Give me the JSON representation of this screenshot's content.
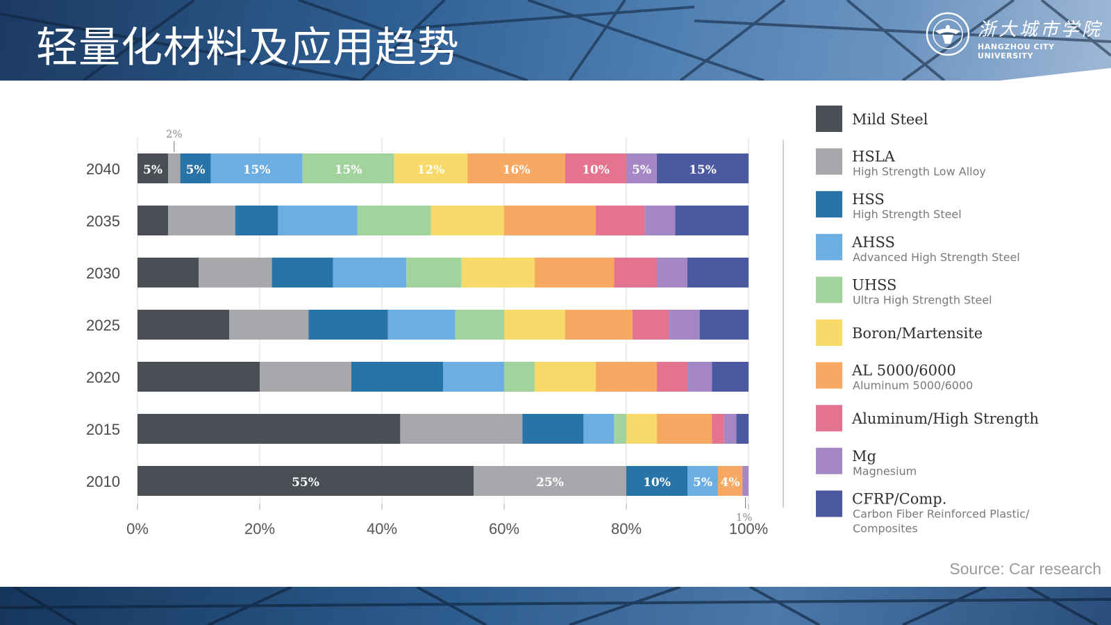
{
  "header": {
    "title": "轻量化材料及应用趋势"
  },
  "logo": {
    "name_cn": "浙大城市学院",
    "name_en": "HANGZHOU CITY UNIVERSITY"
  },
  "source": "Source: Car research",
  "chart_data": {
    "type": "bar",
    "orientation": "horizontal",
    "stacked": true,
    "categories": [
      "2040",
      "2035",
      "2030",
      "2025",
      "2020",
      "2015",
      "2010"
    ],
    "xlim": [
      0,
      100
    ],
    "x_ticks": [
      "0%",
      "20%",
      "40%",
      "60%",
      "80%",
      "100%"
    ],
    "grid": true,
    "legend_position": "right",
    "series": [
      {
        "name": "Mild Steel",
        "subtitle": "",
        "color": "#4a4f56",
        "values": [
          5,
          5,
          10,
          15,
          20,
          43,
          55
        ]
      },
      {
        "name": "HSLA",
        "subtitle": "High Strength Low Alloy",
        "color": "#a6a8ab",
        "values": [
          2,
          11,
          12,
          13,
          15,
          20,
          25
        ]
      },
      {
        "name": "HSS",
        "subtitle": "High Strength Steel",
        "color": "#2873a7",
        "values": [
          5,
          7,
          10,
          13,
          15,
          10,
          10
        ]
      },
      {
        "name": "AHSS",
        "subtitle": "Advanced High Strength Steel",
        "color": "#6daee2",
        "values": [
          15,
          13,
          12,
          11,
          10,
          5,
          5
        ]
      },
      {
        "name": "UHSS",
        "subtitle": "Ultra High Strength Steel",
        "color": "#a3d39c",
        "values": [
          15,
          12,
          9,
          8,
          5,
          2,
          0
        ]
      },
      {
        "name": "Boron/Martensite",
        "subtitle": "",
        "color": "#f8da6b",
        "values": [
          12,
          12,
          12,
          10,
          10,
          5,
          0
        ]
      },
      {
        "name": "AL 5000/6000",
        "subtitle": "Aluminum 5000/6000",
        "color": "#f7a963",
        "values": [
          16,
          15,
          13,
          11,
          10,
          9,
          4
        ]
      },
      {
        "name": "Aluminum/High Strength",
        "subtitle": "",
        "color": "#e3738f",
        "values": [
          10,
          8,
          7,
          6,
          5,
          2,
          0
        ]
      },
      {
        "name": "Mg",
        "subtitle": "Magnesium",
        "color": "#a487c4",
        "values": [
          5,
          5,
          5,
          5,
          4,
          2,
          1
        ]
      },
      {
        "name": "CFRP/Comp.",
        "subtitle": "Carbon Fiber Reinforced Plastic/ Composites",
        "color": "#4b5aa0",
        "values": [
          15,
          12,
          10,
          8,
          6,
          2,
          0
        ]
      }
    ],
    "data_labels": {
      "2040": [
        "5%",
        "",
        "5%",
        "15%",
        "15%",
        "12%",
        "16%",
        "10%",
        "5%",
        "15%"
      ],
      "2010": [
        "55%",
        "25%",
        "10%",
        "5%",
        "",
        "",
        "4%",
        "",
        "",
        ""
      ]
    },
    "annotations": [
      {
        "text": "2%",
        "category": "2040",
        "series": "HSLA",
        "side": "above"
      },
      {
        "text": "1%",
        "category": "2010",
        "series": "Mg",
        "side": "below"
      }
    ]
  }
}
